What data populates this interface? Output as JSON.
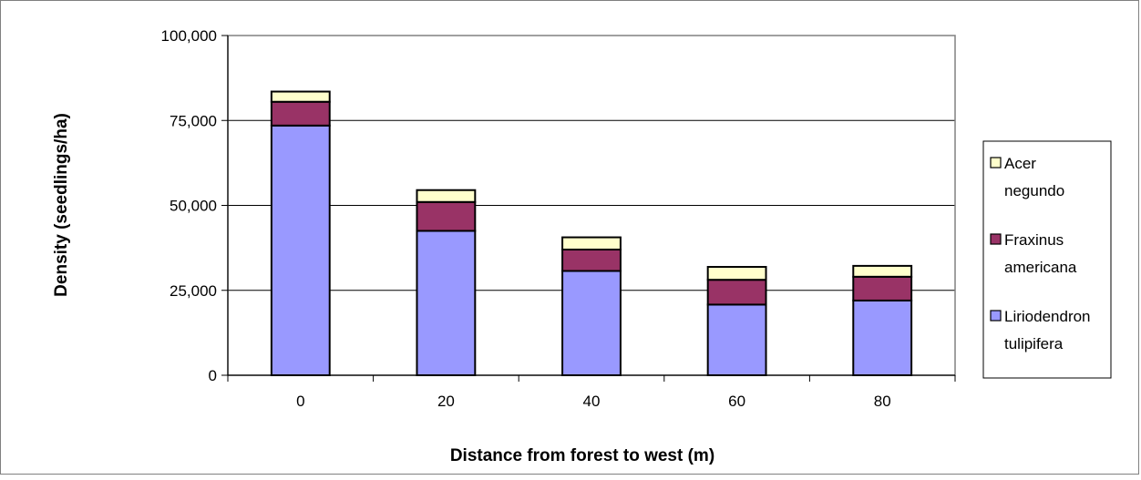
{
  "chart_data": {
    "type": "bar",
    "stacked": true,
    "categories": [
      "0",
      "20",
      "40",
      "60",
      "80"
    ],
    "series": [
      {
        "name": "Liriodendron tulipifera",
        "color": "#9999ff",
        "values": [
          73500,
          42500,
          30700,
          20800,
          22000
        ]
      },
      {
        "name": "Fraxinus americana",
        "color": "#993366",
        "values": [
          7000,
          8500,
          6300,
          7300,
          7000
        ]
      },
      {
        "name": "Acer negundo",
        "color": "#ffffcc",
        "values": [
          3000,
          3500,
          3600,
          3800,
          3200
        ]
      }
    ],
    "xlabel": "Distance from forest to west (m)",
    "ylabel": "Density (seedlings/ha)",
    "ylim": [
      0,
      100000
    ],
    "yticks": [
      "0",
      "25,000",
      "50,000",
      "75,000",
      "100,000"
    ],
    "ytick_values": [
      0,
      25000,
      50000,
      75000,
      100000
    ],
    "grid": true,
    "legend": {
      "placement": "right",
      "entries": [
        {
          "series": 2,
          "lines": [
            "Acer",
            "negundo"
          ]
        },
        {
          "series": 1,
          "lines": [
            "Fraxinus",
            "americana"
          ]
        },
        {
          "series": 0,
          "lines": [
            "Liriodendron",
            "tulipifera"
          ]
        }
      ]
    }
  }
}
